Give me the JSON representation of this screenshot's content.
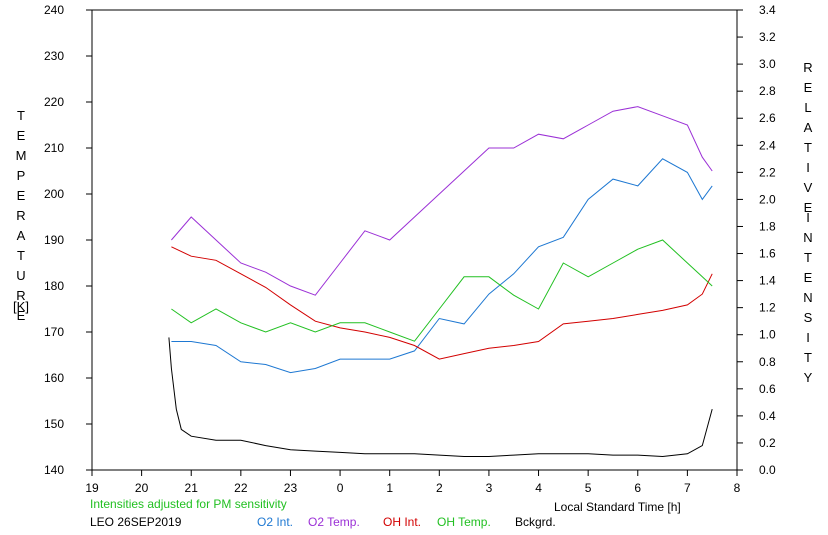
{
  "chart_data": {
    "type": "line",
    "y_left_label": [
      "T",
      "E",
      "M",
      "P",
      "E",
      "R",
      "A",
      "T",
      "U",
      "R",
      "E"
    ],
    "y_left_unit": "[K]",
    "y_right_label": [
      "R",
      "E",
      "L",
      "A",
      "T",
      "I",
      "V",
      "E"
    ],
    "y_right_label2": [
      "I",
      "N",
      "T",
      "E",
      "N",
      "S",
      "I",
      "T",
      "Y"
    ],
    "xlabel": "Local Standard Time [h]",
    "x_ticks": [
      19,
      20,
      21,
      22,
      23,
      0,
      1,
      2,
      3,
      4,
      5,
      6,
      7,
      8
    ],
    "y_left_ticks": [
      140,
      150,
      160,
      170,
      180,
      190,
      200,
      210,
      220,
      230,
      240
    ],
    "y_right_ticks": [
      "0.0",
      "0.2",
      "0.4",
      "0.6",
      "0.8",
      "1.0",
      "1.2",
      "1.4",
      "1.6",
      "1.8",
      "2.0",
      "2.2",
      "2.4",
      "2.6",
      "2.8",
      "3.0",
      "3.2",
      "3.4"
    ],
    "x_range": [
      19,
      32
    ],
    "y_left_range": [
      140,
      240
    ],
    "y_right_range": [
      0.0,
      3.4
    ],
    "note": "Intensities adjusted for PM sensitivity",
    "station": "LEO 26SEP2019",
    "series": [
      {
        "name": "O2 Int.",
        "axis": "right",
        "color": "#1e78d2",
        "x": [
          20.6,
          21.0,
          21.5,
          22.0,
          22.5,
          23.0,
          23.5,
          24.0,
          24.5,
          25.0,
          25.5,
          26.0,
          26.5,
          27.0,
          27.5,
          28.0,
          28.5,
          29.0,
          29.5,
          30.0,
          30.5,
          31.0,
          31.3,
          31.5
        ],
        "y": [
          0.95,
          0.95,
          0.92,
          0.8,
          0.78,
          0.72,
          0.75,
          0.82,
          0.82,
          0.82,
          0.88,
          1.12,
          1.08,
          1.3,
          1.45,
          1.65,
          1.72,
          2.0,
          2.15,
          2.1,
          2.3,
          2.2,
          2.0,
          2.1
        ]
      },
      {
        "name": "O2 Temp.",
        "axis": "left",
        "color": "#9b30d6",
        "x": [
          20.6,
          21.0,
          21.5,
          22.0,
          22.5,
          23.0,
          23.5,
          24.0,
          24.5,
          25.0,
          25.5,
          26.0,
          26.5,
          27.0,
          27.5,
          28.0,
          28.5,
          29.0,
          29.5,
          30.0,
          30.5,
          31.0,
          31.3,
          31.5
        ],
        "y": [
          190,
          195,
          190,
          185,
          183,
          180,
          178,
          185,
          192,
          190,
          195,
          200,
          205,
          210,
          210,
          213,
          212,
          215,
          218,
          219,
          217,
          215,
          208,
          205
        ]
      },
      {
        "name": "OH Int.",
        "axis": "right",
        "color": "#d20000",
        "x": [
          20.6,
          21.0,
          21.5,
          22.0,
          22.5,
          23.0,
          23.5,
          24.0,
          24.5,
          25.0,
          25.5,
          26.0,
          26.5,
          27.0,
          27.5,
          28.0,
          28.5,
          29.0,
          29.5,
          30.0,
          30.5,
          31.0,
          31.3,
          31.5
        ],
        "y": [
          1.65,
          1.58,
          1.55,
          1.45,
          1.35,
          1.22,
          1.1,
          1.05,
          1.02,
          0.98,
          0.92,
          0.82,
          0.86,
          0.9,
          0.92,
          0.95,
          1.08,
          1.1,
          1.12,
          1.15,
          1.18,
          1.22,
          1.3,
          1.45
        ]
      },
      {
        "name": "OH Temp.",
        "axis": "left",
        "color": "#22c022",
        "x": [
          20.6,
          21.0,
          21.5,
          22.0,
          22.5,
          23.0,
          23.5,
          24.0,
          24.5,
          25.0,
          25.5,
          26.0,
          26.5,
          27.0,
          27.5,
          28.0,
          28.5,
          29.0,
          29.5,
          30.0,
          30.5,
          31.0,
          31.3,
          31.5
        ],
        "y": [
          175,
          172,
          175,
          172,
          170,
          172,
          170,
          172,
          172,
          170,
          168,
          175,
          182,
          182,
          178,
          175,
          185,
          182,
          185,
          188,
          190,
          185,
          182,
          180
        ]
      },
      {
        "name": "Bckgrd.",
        "axis": "right",
        "color": "#000000",
        "x": [
          20.55,
          20.6,
          20.7,
          20.8,
          21.0,
          21.5,
          22.0,
          22.5,
          23.0,
          23.5,
          24.0,
          24.5,
          25.0,
          25.5,
          26.0,
          26.5,
          27.0,
          27.5,
          28.0,
          28.5,
          29.0,
          29.5,
          30.0,
          30.5,
          31.0,
          31.3,
          31.5
        ],
        "y": [
          0.98,
          0.75,
          0.45,
          0.3,
          0.25,
          0.22,
          0.22,
          0.18,
          0.15,
          0.14,
          0.13,
          0.12,
          0.12,
          0.12,
          0.11,
          0.1,
          0.1,
          0.11,
          0.12,
          0.12,
          0.12,
          0.11,
          0.11,
          0.1,
          0.12,
          0.18,
          0.45
        ]
      }
    ]
  }
}
